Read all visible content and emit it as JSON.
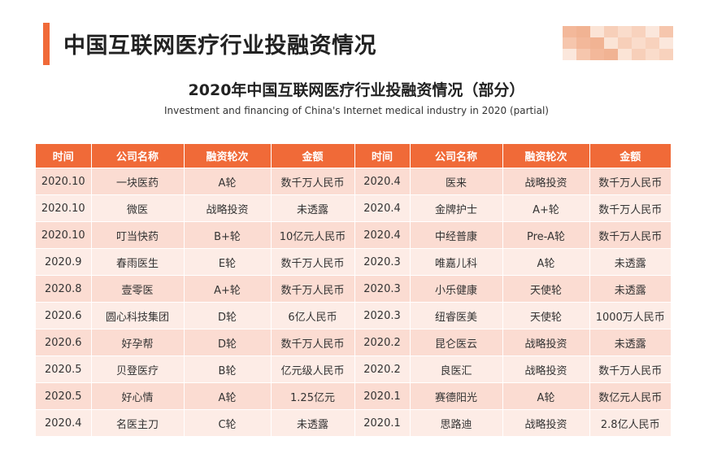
{
  "header": {
    "title": "中国互联网医疗行业投融资情况"
  },
  "table": {
    "title": "2020年中国互联网医疗行业投融资情况（部分）",
    "subtitle": "Investment and financing of China's Internet medical industry in 2020 (partial)",
    "columns": [
      "时间",
      "公司名称",
      "融资轮次",
      "金额",
      "时间",
      "公司名称",
      "融资轮次",
      "金额"
    ],
    "rows": [
      [
        "2020.10",
        "一块医药",
        "A轮",
        "数千万人民币",
        "2020.4",
        "医来",
        "战略投资",
        "数千万人民币"
      ],
      [
        "2020.10",
        "微医",
        "战略投资",
        "未透露",
        "2020.4",
        "金牌护士",
        "A+轮",
        "数千万人民币"
      ],
      [
        "2020.10",
        "叮当快药",
        "B+轮",
        "10亿元人民币",
        "2020.4",
        "中经普康",
        "Pre-A轮",
        "数千万人民币"
      ],
      [
        "2020.9",
        "春雨医生",
        "E轮",
        "数千万人民币",
        "2020.3",
        "唯嘉儿科",
        "A轮",
        "未透露"
      ],
      [
        "2020.8",
        "壹零医",
        "A+轮",
        "数千万人民币",
        "2020.3",
        "小乐健康",
        "天使轮",
        "未透露"
      ],
      [
        "2020.6",
        "圆心科技集团",
        "D轮",
        "6亿人民币",
        "2020.3",
        "纽睿医美",
        "天使轮",
        "1000万人民币"
      ],
      [
        "2020.6",
        "好孕帮",
        "D轮",
        "数千万人民币",
        "2020.2",
        "昆仑医云",
        "战略投资",
        "未透露"
      ],
      [
        "2020.5",
        "贝登医疗",
        "B轮",
        "亿元级人民币",
        "2020.2",
        "良医汇",
        "战略投资",
        "数千万人民币"
      ],
      [
        "2020.5",
        "好心情",
        "A轮",
        "1.25亿元",
        "2020.1",
        "赛德阳光",
        "A轮",
        "数亿元人民币"
      ],
      [
        "2020.4",
        "名医主刀",
        "C轮",
        "未透露",
        "2020.1",
        "思路迪",
        "战略投资",
        "2.8亿人民币"
      ]
    ]
  },
  "colors": {
    "accent": "#f06a38",
    "row_odd": "#fbdcd2",
    "row_even": "#fdece6",
    "mosaic": [
      "#f3b89a",
      "#f8d2bd",
      "#fbe4d6",
      "#f6c6ad",
      "#fadccb",
      "#f1b393",
      "#fbe7dc",
      "#f7cfb9"
    ]
  }
}
